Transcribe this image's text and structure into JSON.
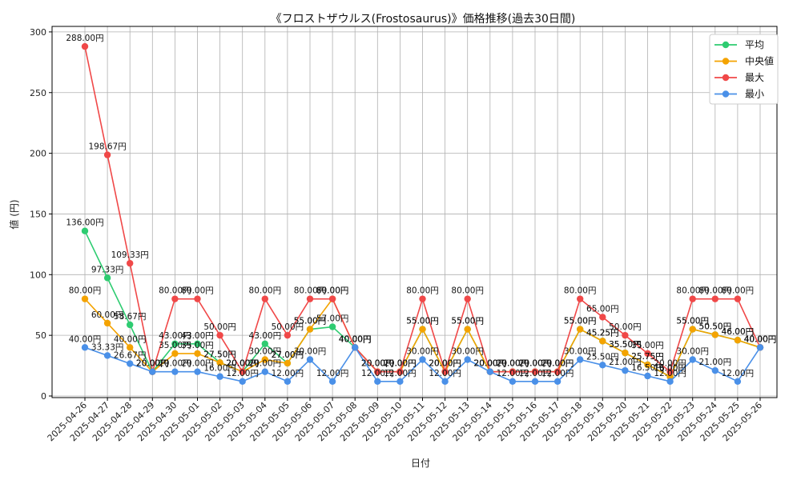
{
  "chart_data": {
    "type": "line",
    "title": "《フロストザウルス(Frostosaurus)》価格推移(過去30日間)",
    "xlabel": "日付",
    "ylabel": "値 (円)",
    "ylim": [
      0,
      300
    ],
    "yticks": [
      0,
      50,
      100,
      150,
      200,
      250,
      300
    ],
    "grid": true,
    "legend_position": "top-right",
    "value_suffix": "円",
    "categories": [
      "2025-04-26",
      "2025-04-27",
      "2025-04-28",
      "2025-04-29",
      "2025-04-30",
      "2025-05-01",
      "2025-05-02",
      "2025-05-03",
      "2025-05-04",
      "2025-05-05",
      "2025-05-06",
      "2025-05-07",
      "2025-05-08",
      "2025-05-09",
      "2025-05-10",
      "2025-05-11",
      "2025-05-12",
      "2025-05-13",
      "2025-05-14",
      "2025-05-15",
      "2025-05-16",
      "2025-05-17",
      "2025-05-18",
      "2025-05-19",
      "2025-05-20",
      "2025-05-21",
      "2025-05-22",
      "2025-05-23",
      "2025-05-24",
      "2025-05-25",
      "2025-05-26"
    ],
    "series": [
      {
        "name": "平均",
        "color": "#2ecc71",
        "values": [
          136.0,
          97.33,
          58.67,
          20.0,
          43.0,
          43.0,
          27.5,
          20.0,
          43.0,
          27.0,
          55.0,
          57.0,
          40.0,
          20.0,
          20.0,
          55.0,
          20.0,
          55.0,
          20.0,
          20.0,
          20.0,
          20.0,
          55.0,
          45.25,
          35.5,
          25.75,
          16.0,
          55.0,
          50.5,
          46.0,
          40.0
        ]
      },
      {
        "name": "中央値",
        "color": "#f4a300",
        "values": [
          80.0,
          60.0,
          40.0,
          20.0,
          35.0,
          35.0,
          27.5,
          20.0,
          30.0,
          27.0,
          55.0,
          80.0,
          40.0,
          20.0,
          20.0,
          55.0,
          20.0,
          55.0,
          20.0,
          20.0,
          20.0,
          20.0,
          55.0,
          45.25,
          35.5,
          25.75,
          16.0,
          55.0,
          50.5,
          46.0,
          40.0
        ]
      },
      {
        "name": "最大",
        "color": "#f04848",
        "values": [
          288.0,
          198.67,
          109.33,
          20.0,
          80.0,
          80.0,
          50.0,
          20.0,
          80.0,
          50.0,
          80.0,
          80.0,
          40.0,
          20.0,
          20.0,
          80.0,
          20.0,
          80.0,
          20.0,
          20.0,
          20.0,
          20.0,
          80.0,
          65.0,
          50.0,
          35.0,
          20.0,
          80.0,
          80.0,
          80.0,
          40.0
        ]
      },
      {
        "name": "最小",
        "color": "#4a90e8",
        "values": [
          40.0,
          33.33,
          26.67,
          20.0,
          20.0,
          20.0,
          16.0,
          12.0,
          20.0,
          12.0,
          30.0,
          12.0,
          40.0,
          12.0,
          12.0,
          30.0,
          12.0,
          30.0,
          20.0,
          12.0,
          12.0,
          12.0,
          30.0,
          25.5,
          21.0,
          16.5,
          12.0,
          30.0,
          21.0,
          12.0,
          40.0
        ]
      }
    ]
  }
}
